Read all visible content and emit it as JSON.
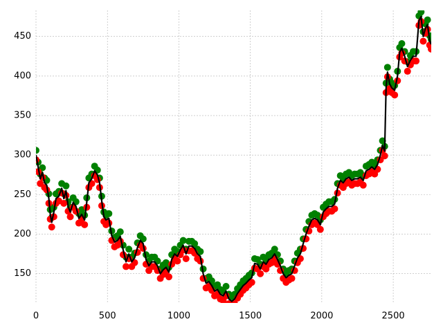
{
  "chart_data": {
    "type": "line",
    "x": [
      0,
      15,
      30,
      45,
      60,
      75,
      90,
      100,
      110,
      125,
      140,
      160,
      180,
      195,
      210,
      225,
      240,
      260,
      280,
      300,
      320,
      340,
      355,
      370,
      390,
      410,
      430,
      445,
      460,
      475,
      490,
      510,
      530,
      550,
      570,
      590,
      610,
      630,
      650,
      670,
      690,
      710,
      730,
      750,
      770,
      790,
      810,
      830,
      850,
      870,
      890,
      910,
      930,
      950,
      970,
      990,
      1010,
      1030,
      1050,
      1070,
      1090,
      1110,
      1130,
      1150,
      1170,
      1190,
      1210,
      1230,
      1250,
      1270,
      1290,
      1310,
      1330,
      1350,
      1370,
      1390,
      1410,
      1430,
      1450,
      1470,
      1490,
      1510,
      1530,
      1550,
      1570,
      1590,
      1610,
      1630,
      1650,
      1670,
      1690,
      1710,
      1730,
      1750,
      1770,
      1790,
      1810,
      1830,
      1850,
      1870,
      1890,
      1910,
      1930,
      1950,
      1970,
      1990,
      2010,
      2030,
      2050,
      2070,
      2090,
      2110,
      2130,
      2150,
      2170,
      2190,
      2210,
      2230,
      2250,
      2270,
      2290,
      2310,
      2330,
      2350,
      2370,
      2390,
      2410,
      2425,
      2440,
      2450,
      2460,
      2475,
      2490,
      2510,
      2530,
      2545,
      2560,
      2580,
      2600,
      2620,
      2640,
      2660,
      2680,
      2695,
      2710,
      2725,
      2740,
      2755,
      2766
    ],
    "series": [
      {
        "color": "#008000",
        "marker": "dot",
        "values": [
          306,
          291,
          276,
          284,
          271,
          268,
          251,
          231,
          221,
          234,
          251,
          254,
          264,
          251,
          261,
          241,
          234,
          246,
          241,
          226,
          231,
          224,
          246,
          271,
          276,
          286,
          281,
          271,
          248,
          228,
          224,
          226,
          204,
          196,
          198,
          203,
          186,
          171,
          181,
          171,
          176,
          189,
          198,
          194,
          174,
          166,
          171,
          171,
          166,
          156,
          161,
          164,
          158,
          174,
          181,
          178,
          186,
          192,
          181,
          191,
          191,
          188,
          181,
          178,
          156,
          144,
          146,
          141,
          134,
          136,
          130,
          128,
          134,
          124,
          121,
          124,
          131,
          136,
          141,
          144,
          148,
          151,
          169,
          168,
          162,
          171,
          168,
          174,
          176,
          181,
          174,
          166,
          156,
          151,
          154,
          156,
          166,
          176,
          181,
          194,
          206,
          216,
          224,
          226,
          224,
          218,
          234,
          238,
          241,
          241,
          244,
          264,
          274,
          271,
          276,
          278,
          274,
          276,
          276,
          278,
          274,
          286,
          288,
          291,
          288,
          294,
          306,
          318,
          311,
          391,
          411,
          396,
          391,
          388,
          406,
          436,
          441,
          431,
          418,
          426,
          431,
          431,
          476,
          481,
          456,
          466,
          471,
          451,
          446
        ]
      },
      {
        "color": "#ff0000",
        "marker": "dot",
        "values": [
          294,
          279,
          264,
          272,
          259,
          256,
          239,
          219,
          209,
          222,
          239,
          242,
          252,
          239,
          249,
          229,
          222,
          234,
          229,
          214,
          219,
          212,
          234,
          259,
          264,
          274,
          269,
          259,
          236,
          216,
          212,
          214,
          192,
          184,
          186,
          191,
          174,
          159,
          169,
          159,
          164,
          177,
          186,
          182,
          162,
          154,
          159,
          159,
          154,
          144,
          149,
          152,
          146,
          162,
          169,
          166,
          174,
          180,
          169,
          179,
          179,
          176,
          169,
          166,
          144,
          132,
          134,
          129,
          122,
          124,
          118,
          116,
          122,
          112,
          109,
          112,
          119,
          124,
          129,
          132,
          136,
          139,
          157,
          156,
          150,
          159,
          156,
          162,
          164,
          169,
          162,
          154,
          144,
          139,
          142,
          144,
          154,
          164,
          169,
          182,
          194,
          204,
          212,
          214,
          212,
          206,
          222,
          226,
          229,
          229,
          232,
          252,
          262,
          259,
          264,
          266,
          262,
          264,
          264,
          266,
          262,
          274,
          276,
          279,
          276,
          282,
          294,
          306,
          299,
          379,
          399,
          384,
          379,
          376,
          394,
          424,
          429,
          419,
          406,
          414,
          419,
          419,
          464,
          469,
          444,
          454,
          459,
          439,
          434
        ]
      },
      {
        "color": "#000000",
        "marker": "line",
        "values": [
          300,
          285,
          270,
          278,
          265,
          262,
          245,
          225,
          215,
          228,
          245,
          248,
          258,
          245,
          255,
          235,
          228,
          240,
          235,
          220,
          225,
          218,
          240,
          265,
          270,
          280,
          275,
          265,
          242,
          222,
          218,
          220,
          198,
          190,
          192,
          197,
          180,
          165,
          175,
          165,
          170,
          183,
          192,
          188,
          168,
          160,
          165,
          165,
          160,
          150,
          155,
          158,
          152,
          168,
          175,
          172,
          180,
          186,
          175,
          185,
          185,
          182,
          175,
          172,
          150,
          138,
          140,
          135,
          128,
          130,
          124,
          122,
          128,
          118,
          115,
          118,
          125,
          130,
          135,
          138,
          142,
          145,
          163,
          162,
          156,
          165,
          162,
          168,
          170,
          175,
          168,
          160,
          150,
          145,
          148,
          150,
          160,
          170,
          175,
          188,
          200,
          210,
          218,
          220,
          218,
          212,
          228,
          232,
          235,
          235,
          238,
          258,
          268,
          265,
          270,
          272,
          268,
          270,
          270,
          272,
          268,
          280,
          282,
          285,
          282,
          288,
          300,
          312,
          305,
          385,
          405,
          390,
          385,
          382,
          400,
          430,
          435,
          425,
          412,
          420,
          425,
          425,
          470,
          475,
          450,
          460,
          465,
          445,
          440
        ]
      }
    ],
    "xlim": [
      0,
      2766
    ],
    "ylim": [
      113,
      483
    ],
    "xticks": [
      0,
      500,
      1000,
      1500,
      2000,
      2500
    ],
    "yticks": [
      150,
      200,
      250,
      300,
      350,
      400,
      450
    ],
    "grid": true
  }
}
